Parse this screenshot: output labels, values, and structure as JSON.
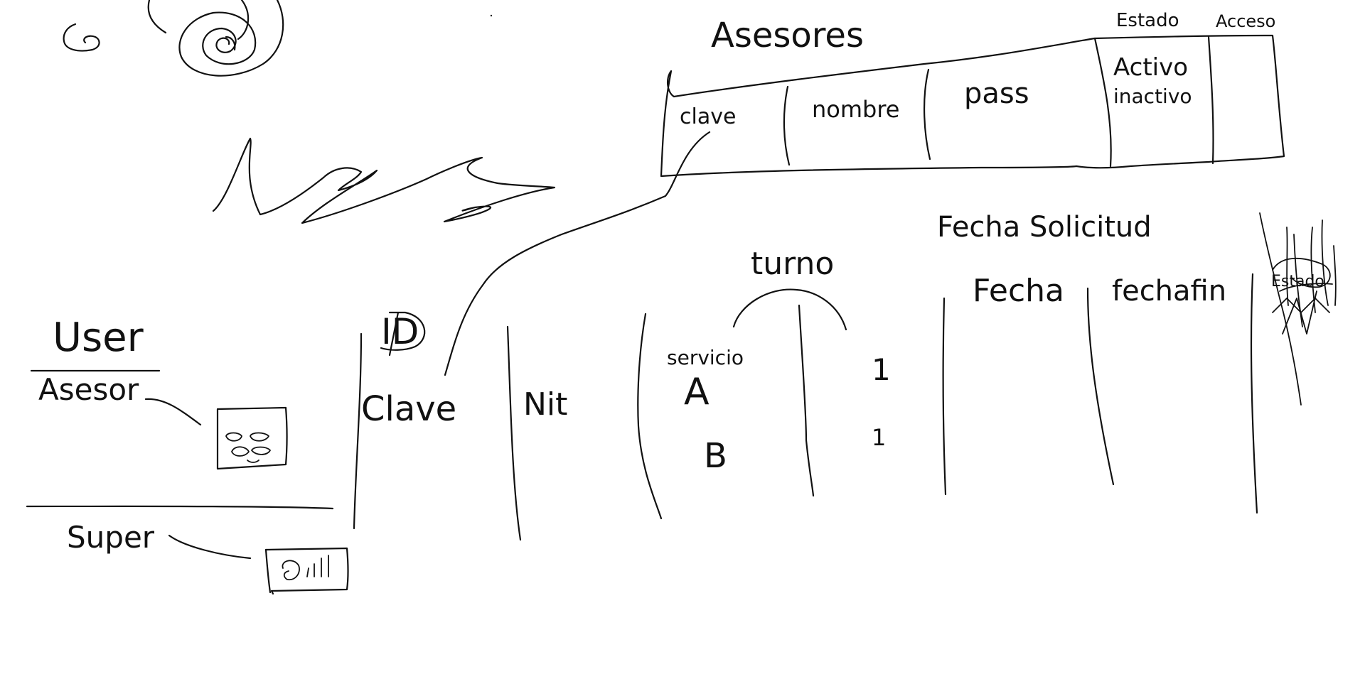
{
  "user_panel": {
    "user_label": "User",
    "asesor_label": "Asesor",
    "super_label": "Super"
  },
  "asesores_table": {
    "title": "Asesores",
    "columns": [
      "clave",
      "nombre",
      "pass",
      "Activo",
      "Acceso"
    ],
    "estado_label": "Estado",
    "acceso_label": "Acceso",
    "estado_values": [
      "Activo",
      "inactivo"
    ]
  },
  "solicitud_table": {
    "id_label": "ID",
    "clave_label": "Clave",
    "nit_label": "Nit",
    "servicio_label": "servicio",
    "servicio_values": [
      "A",
      "B"
    ],
    "turno_label": "turno",
    "turno_values": [
      "1",
      "1"
    ],
    "fecha_solicitud_label": "Fecha Solicitud",
    "fecha_label": "Fecha",
    "fechafin_label": "fechafin",
    "estado_label": "Estado"
  },
  "icons": [
    "spiral-icon",
    "scribble-icon",
    "card-icon",
    "dashboard-icon"
  ]
}
